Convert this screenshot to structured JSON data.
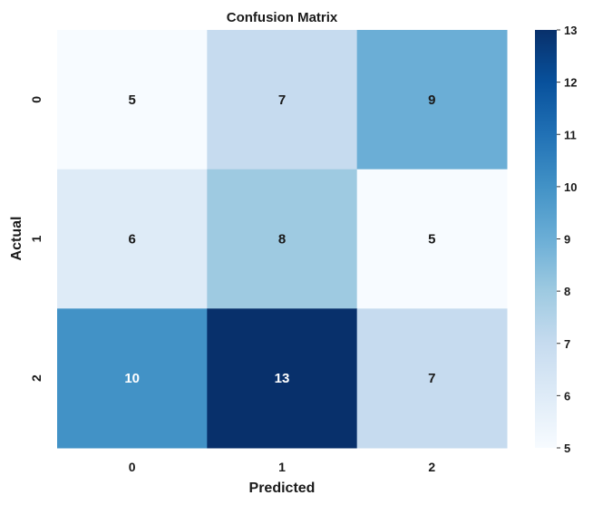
{
  "chart_data": {
    "type": "heatmap",
    "title": "Confusion Matrix",
    "xlabel": "Predicted",
    "ylabel": "Actual",
    "x_categories": [
      "0",
      "1",
      "2"
    ],
    "y_categories": [
      "0",
      "1",
      "2"
    ],
    "values": [
      [
        5,
        7,
        9
      ],
      [
        6,
        8,
        5
      ],
      [
        10,
        13,
        7
      ]
    ],
    "colormap": "Blues",
    "color_range": [
      5,
      13
    ],
    "colorbar_ticks": [
      "5",
      "6",
      "7",
      "8",
      "9",
      "10",
      "11",
      "12",
      "13"
    ],
    "annotations": true
  }
}
